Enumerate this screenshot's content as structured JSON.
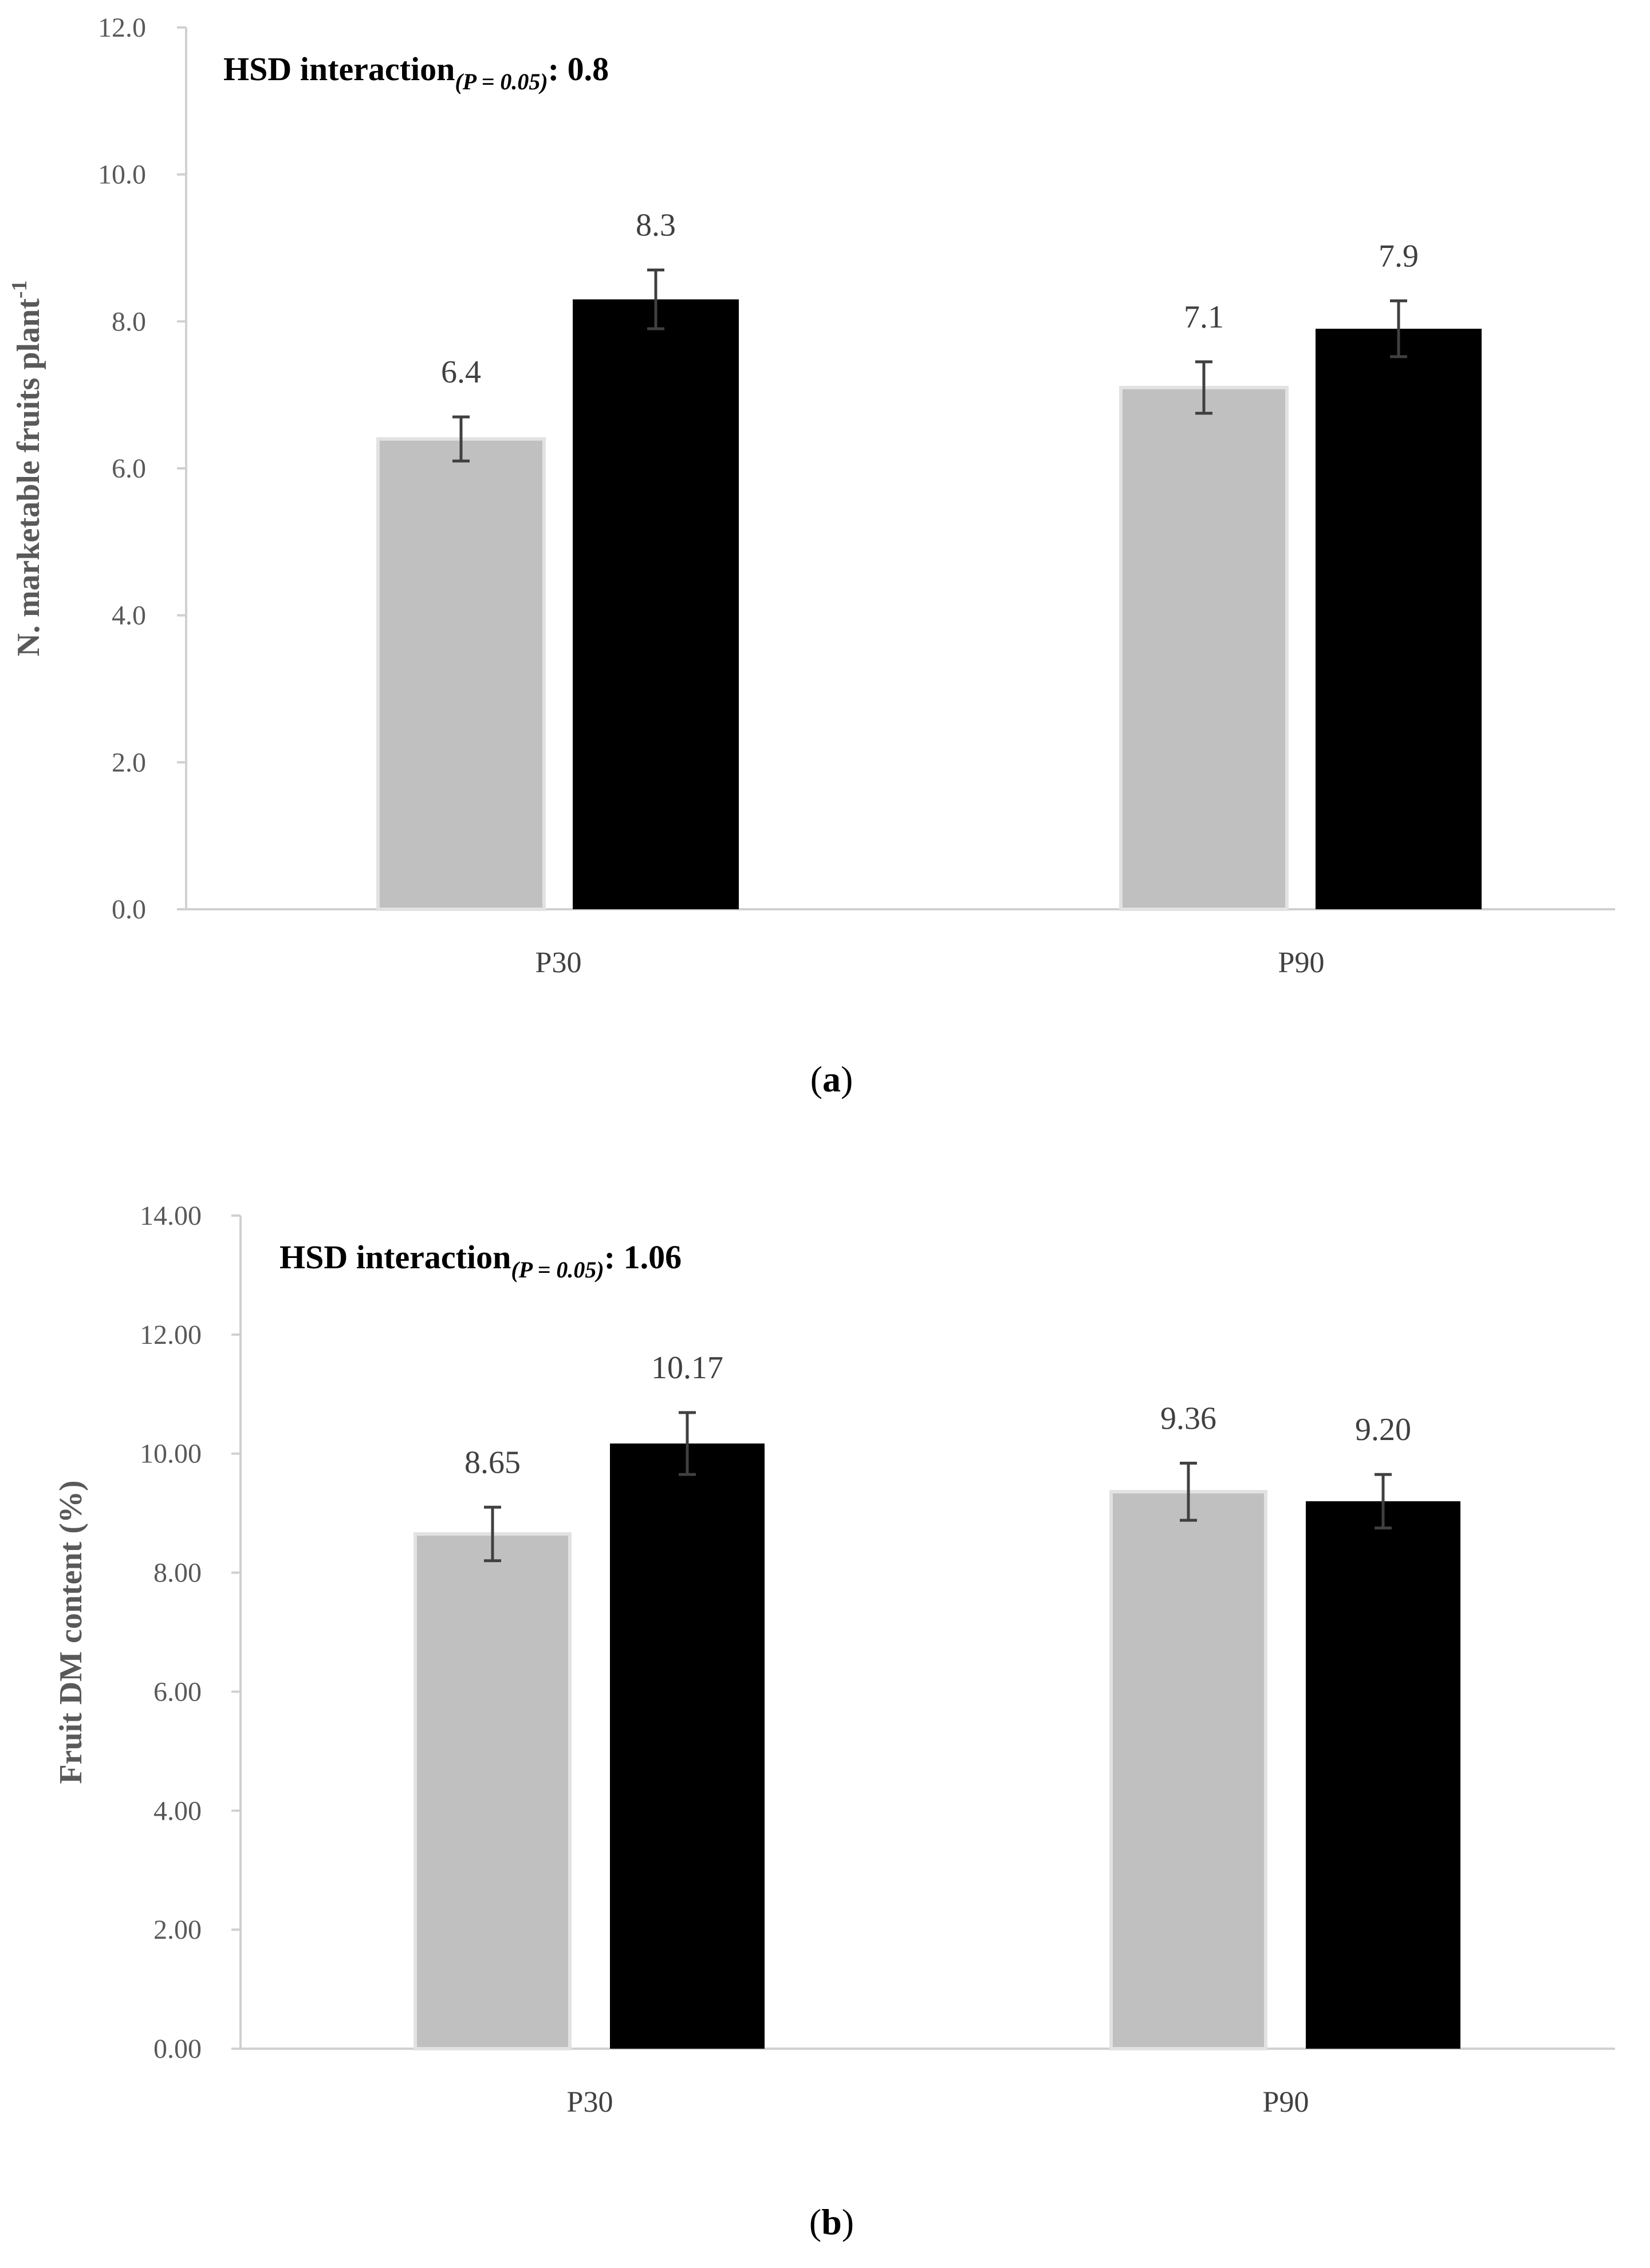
{
  "colors": {
    "series_grey": "#c0c0c0",
    "series_grey_border": "#e2e2e2",
    "series_black": "#000000",
    "axis": "#d0d0d0",
    "error_bar": "#404040"
  },
  "chart_data": [
    {
      "type": "bar",
      "panel_label": "a",
      "categories": [
        "P30",
        "P90"
      ],
      "series": [
        {
          "name": "",
          "color_key": "series_grey",
          "values": [
            6.4,
            7.1
          ],
          "errors": [
            0.3,
            0.35
          ],
          "labels": [
            "6.4",
            "7.1"
          ]
        },
        {
          "name": "",
          "color_key": "series_black",
          "values": [
            8.3,
            7.9
          ],
          "errors": [
            0.4,
            0.38
          ],
          "labels": [
            "8.3",
            "7.9"
          ]
        }
      ],
      "ylabel_main": "N. marketable fruits plant",
      "ylabel_sup": "-1",
      "ylim": [
        0,
        12
      ],
      "yticks": [
        0,
        2,
        4,
        6,
        8,
        10,
        12
      ],
      "ytick_labels": [
        "0.0",
        "2.0",
        "4.0",
        "6.0",
        "8.0",
        "10.0",
        "12.0"
      ],
      "hsd_text": "HSD interaction",
      "hsd_sub": "(P = 0.05)",
      "hsd_value": ": 0.8"
    },
    {
      "type": "bar",
      "panel_label": "b",
      "categories": [
        "P30",
        "P90"
      ],
      "series": [
        {
          "name": "",
          "color_key": "series_grey",
          "values": [
            8.65,
            9.36
          ],
          "errors": [
            0.45,
            0.48
          ],
          "labels": [
            "8.65",
            "9.36"
          ]
        },
        {
          "name": "",
          "color_key": "series_black",
          "values": [
            10.17,
            9.2
          ],
          "errors": [
            0.52,
            0.45
          ],
          "labels": [
            "10.17",
            "9.20"
          ]
        }
      ],
      "ylabel_main": "Fruit DM content (%)",
      "ylabel_sup": "",
      "ylim": [
        0,
        14
      ],
      "yticks": [
        0,
        2,
        4,
        6,
        8,
        10,
        12,
        14
      ],
      "ytick_labels": [
        "0.00",
        "2.00",
        "4.00",
        "6.00",
        "8.00",
        "10.00",
        "12.00",
        "14.00"
      ],
      "hsd_text": "HSD interaction",
      "hsd_sub": "(P = 0.05)",
      "hsd_value": ": 1.06"
    }
  ]
}
